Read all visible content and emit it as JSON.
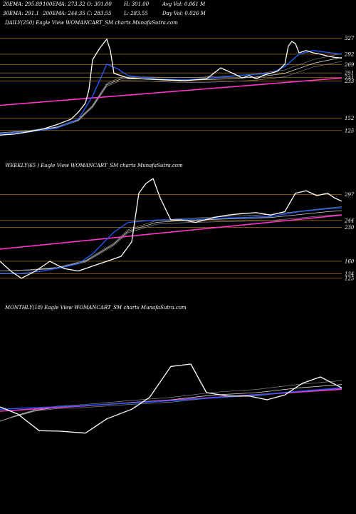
{
  "header": {
    "stats": [
      "20EMA: 295.89",
      "100EMA: 273.32",
      "O: 301.00",
      "H: 301.00",
      "Avg Vol: 0.061 M",
      "30EMA: 291.1",
      "200EMA: 244.35",
      "C: 283.55",
      "L: 283.55",
      "Day Vol: 0.026  M"
    ]
  },
  "colors": {
    "background": "#000000",
    "price": "#ffffff",
    "ema_fast": "#1f5fff",
    "ema_slow": "#d2d2d2",
    "trend": "#ff33cc",
    "grid": "#c8820a"
  },
  "chart_data": [
    {
      "type": "line",
      "title": "DAILY(250)  Eagle  View  WOMANCART_SM charts MunafaSutra.com",
      "levels": [
        327,
        292,
        269,
        251,
        241,
        233,
        152,
        125
      ],
      "ylim": [
        95,
        345
      ],
      "series": [
        {
          "role": "price",
          "x": [
            0,
            20,
            40,
            60,
            80,
            100,
            110,
            120,
            125,
            130,
            140,
            150,
            155,
            160,
            170,
            180,
            200,
            230,
            260,
            290,
            300,
            310,
            320,
            330,
            340,
            350,
            360,
            370,
            380,
            390,
            400,
            405,
            410,
            415,
            420,
            430,
            440,
            450,
            460,
            470,
            480
          ],
          "values": [
            115,
            117,
            122,
            128,
            138,
            150,
            165,
            185,
            215,
            280,
            305,
            325,
            300,
            250,
            245,
            240,
            238,
            236,
            234,
            238,
            250,
            262,
            255,
            248,
            240,
            245,
            238,
            246,
            250,
            255,
            270,
            310,
            320,
            315,
            295,
            300,
            295,
            292,
            288,
            285,
            283.55
          ]
        },
        {
          "role": "ema-fast",
          "x": [
            0,
            40,
            80,
            110,
            130,
            150,
            165,
            180,
            220,
            260,
            300,
            340,
            380,
            400,
            420,
            440,
            460,
            480
          ],
          "values": [
            118,
            122,
            130,
            150,
            200,
            270,
            260,
            245,
            238,
            236,
            240,
            246,
            250,
            265,
            292,
            300,
            296,
            292
          ]
        },
        {
          "role": "ema-slow",
          "x": [
            0,
            40,
            80,
            110,
            130,
            150,
            170,
            200,
            240,
            280,
            320,
            360,
            400,
            440,
            480
          ],
          "values": [
            120,
            124,
            132,
            148,
            178,
            225,
            238,
            238,
            236,
            236,
            238,
            242,
            250,
            272,
            285
          ]
        },
        {
          "role": "trend",
          "x": [
            0,
            480
          ],
          "values": [
            180,
            240
          ]
        }
      ]
    },
    {
      "type": "line",
      "title": "WEEKLY(65                         ) Eagle  View  WOMANCART_SM charts MunafaSutra.com",
      "levels": [
        297,
        244,
        230,
        160,
        134,
        125
      ],
      "ylim": [
        110,
        345
      ],
      "series": [
        {
          "role": "price",
          "x": [
            0,
            15,
            30,
            50,
            70,
            90,
            110,
            130,
            150,
            170,
            185,
            195,
            205,
            215,
            225,
            240,
            255,
            275,
            300,
            320,
            340,
            360,
            380,
            400,
            415,
            430,
            445,
            460,
            470,
            480
          ],
          "values": [
            160,
            140,
            125,
            140,
            160,
            145,
            140,
            150,
            160,
            170,
            200,
            300,
            320,
            330,
            290,
            245,
            245,
            240,
            250,
            255,
            258,
            260,
            255,
            262,
            300,
            305,
            295,
            300,
            290,
            283.55
          ]
        },
        {
          "role": "ema-fast",
          "x": [
            0,
            30,
            60,
            90,
            110,
            130,
            160,
            180,
            220,
            260,
            300,
            340,
            380,
            420,
            460,
            480
          ],
          "values": [
            135,
            135,
            140,
            148,
            155,
            175,
            220,
            240,
            245,
            246,
            248,
            250,
            252,
            262,
            268,
            270
          ]
        },
        {
          "role": "ema-slow",
          "x": [
            0,
            40,
            80,
            120,
            160,
            180,
            220,
            260,
            300,
            340,
            380,
            420,
            460,
            480
          ],
          "values": [
            140,
            142,
            146,
            160,
            195,
            222,
            240,
            244,
            246,
            248,
            250,
            256,
            262,
            264
          ]
        },
        {
          "role": "trend",
          "x": [
            0,
            480
          ],
          "values": [
            185,
            255
          ]
        }
      ]
    },
    {
      "type": "line",
      "title": "MONTHLY(18) Eagle  View  WOMANCART_SM charts MunafaSutra.com",
      "ylim": [
        80,
        380
      ],
      "series": [
        {
          "role": "price",
          "x": [
            0,
            25,
            55,
            85,
            120,
            150,
            185,
            210,
            240,
            268,
            290,
            320,
            350,
            375,
            400,
            425,
            450,
            480
          ],
          "values": [
            185,
            170,
            135,
            134,
            130,
            160,
            180,
            205,
            270,
            275,
            215,
            208,
            208,
            200,
            210,
            235,
            248,
            225
          ]
        },
        {
          "role": "ema-fast",
          "x": [
            0,
            60,
            120,
            180,
            240,
            300,
            360,
            420,
            480
          ],
          "values": [
            180,
            184,
            188,
            193,
            198,
            204,
            210,
            218,
            225
          ]
        },
        {
          "role": "ema-slow",
          "x": [
            0,
            20,
            50,
            80,
            120,
            180,
            240,
            300,
            360,
            420,
            480
          ],
          "values": [
            155,
            165,
            178,
            184,
            187,
            194,
            200,
            210,
            215,
            225,
            232
          ]
        },
        {
          "role": "trend",
          "x": [
            0,
            480
          ],
          "values": [
            176,
            222
          ]
        }
      ]
    }
  ]
}
